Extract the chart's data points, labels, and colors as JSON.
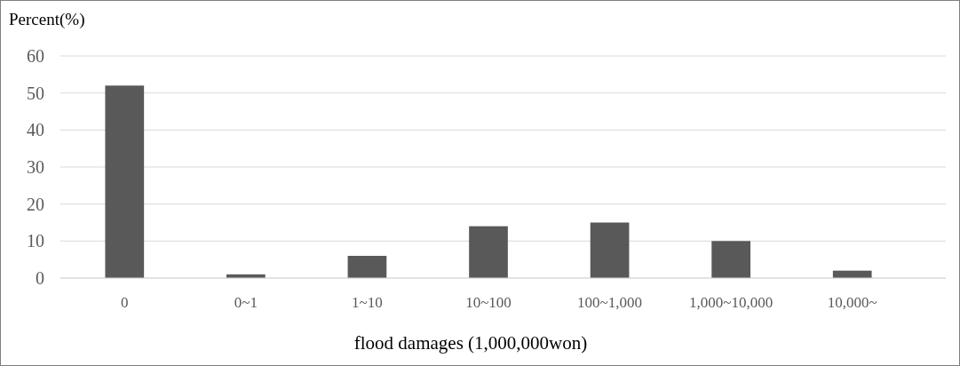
{
  "chart_data": {
    "type": "bar",
    "ylabel": "Percent(%)",
    "xlabel": "flood damages (1,000,000won)",
    "categories": [
      "0",
      "0~1",
      "1~10",
      "10~100",
      "100~1,000",
      "1,000~10,000",
      "10,000~"
    ],
    "values": [
      52,
      1,
      6,
      14,
      15,
      10,
      2
    ],
    "color": "#595959",
    "ylim": [
      0,
      60
    ],
    "yticks": [
      0,
      10,
      20,
      30,
      40,
      50,
      60
    ],
    "grid": "y"
  }
}
